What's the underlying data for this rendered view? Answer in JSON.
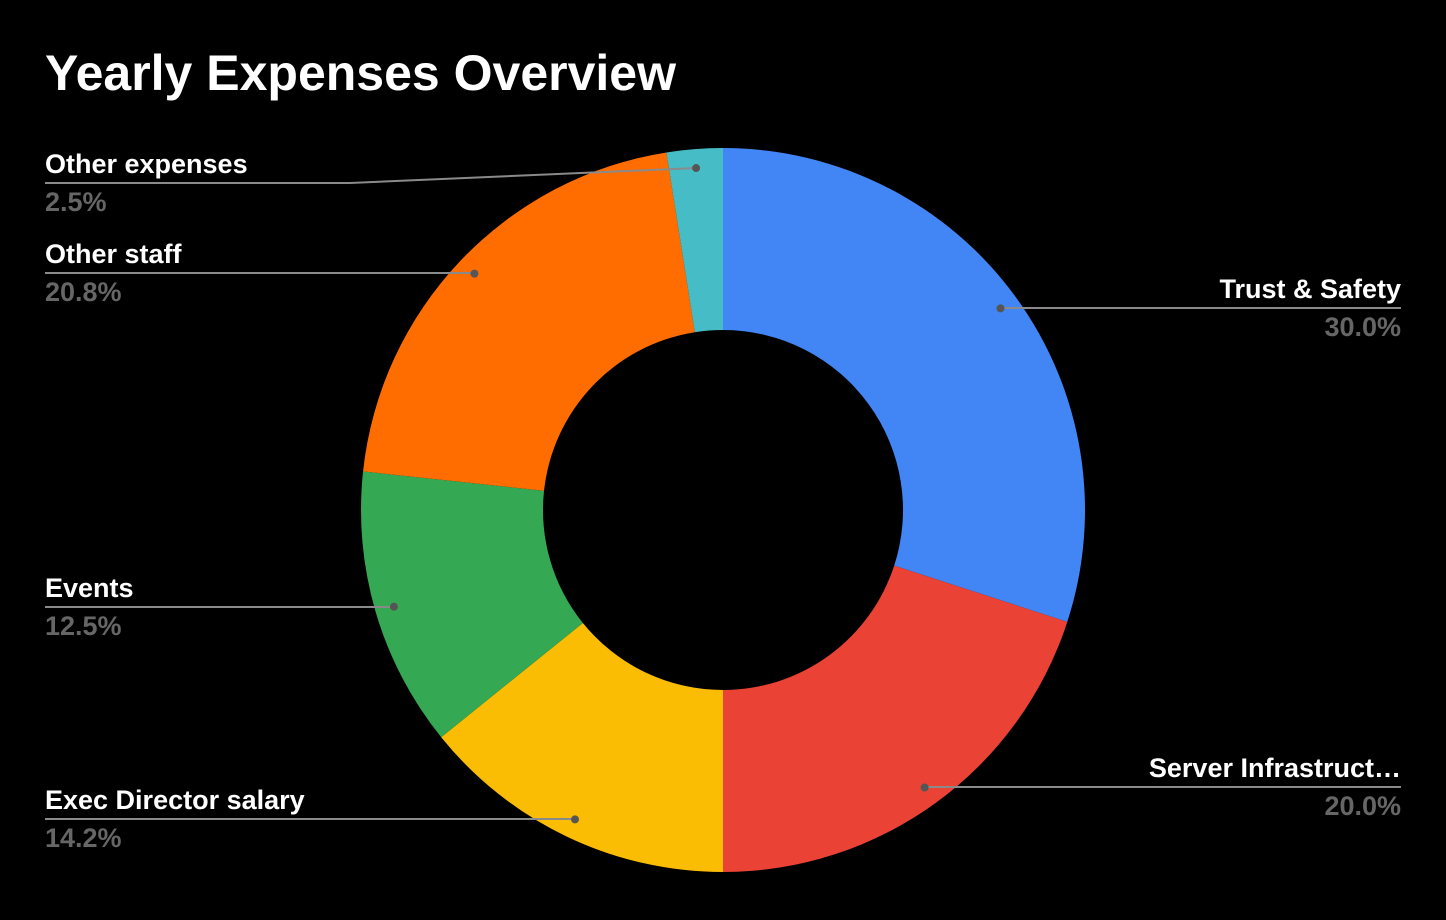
{
  "chart_data": {
    "type": "pie",
    "variant": "donut",
    "title": "Yearly Expenses Overview",
    "start": "top",
    "direction": "clockwise",
    "slices": [
      {
        "label": "Trust & Safety",
        "value": 30.0,
        "display": "30.0%",
        "color": "#4285F4"
      },
      {
        "label": "Server Infrastruct…",
        "value": 20.0,
        "display": "20.0%",
        "color": "#EA4335"
      },
      {
        "label": "Exec Director salary",
        "value": 14.2,
        "display": "14.2%",
        "color": "#FBBC04"
      },
      {
        "label": "Events",
        "value": 12.5,
        "display": "12.5%",
        "color": "#34A853"
      },
      {
        "label": "Other staff",
        "value": 20.8,
        "display": "20.8%",
        "color": "#FF6D01"
      },
      {
        "label": "Other expenses",
        "value": 2.5,
        "display": "2.5%",
        "color": "#46BDC6"
      }
    ],
    "background": "#000000",
    "label_color": "#FFFFFF",
    "percent_color": "#666666"
  }
}
